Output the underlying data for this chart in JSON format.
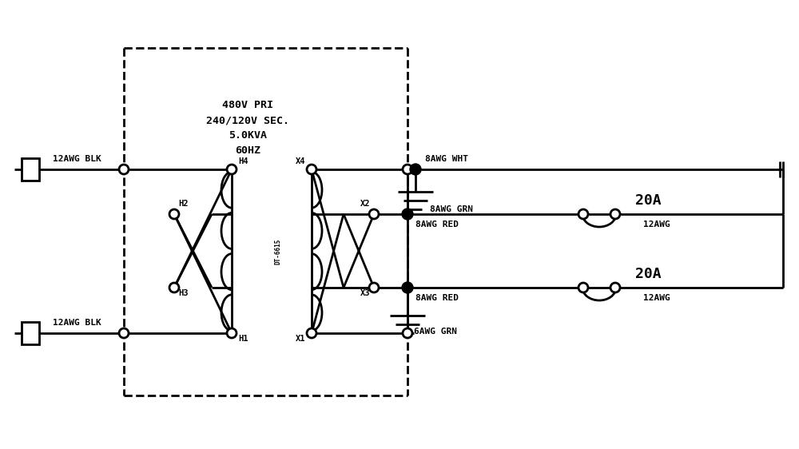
{
  "bg_color": "#ffffff",
  "line_color": "#000000",
  "transformer_label": "480V PRI\n240/120V SEC.\n5.0KVA\n60HZ",
  "part_number": "DT-6615",
  "labels": {
    "top_wire": "12AWG BLK",
    "bot_wire": "12AWG BLK",
    "top_red": "8AWG RED",
    "bot_red": "8AWG RED",
    "wht": "8AWG WHT",
    "grn_top": "8AWG GRN",
    "grn_bot": "6AWG GRN",
    "breaker_top": "20A",
    "breaker_bot": "20A",
    "out_top": "12AWG",
    "out_bot": "12AWG"
  }
}
